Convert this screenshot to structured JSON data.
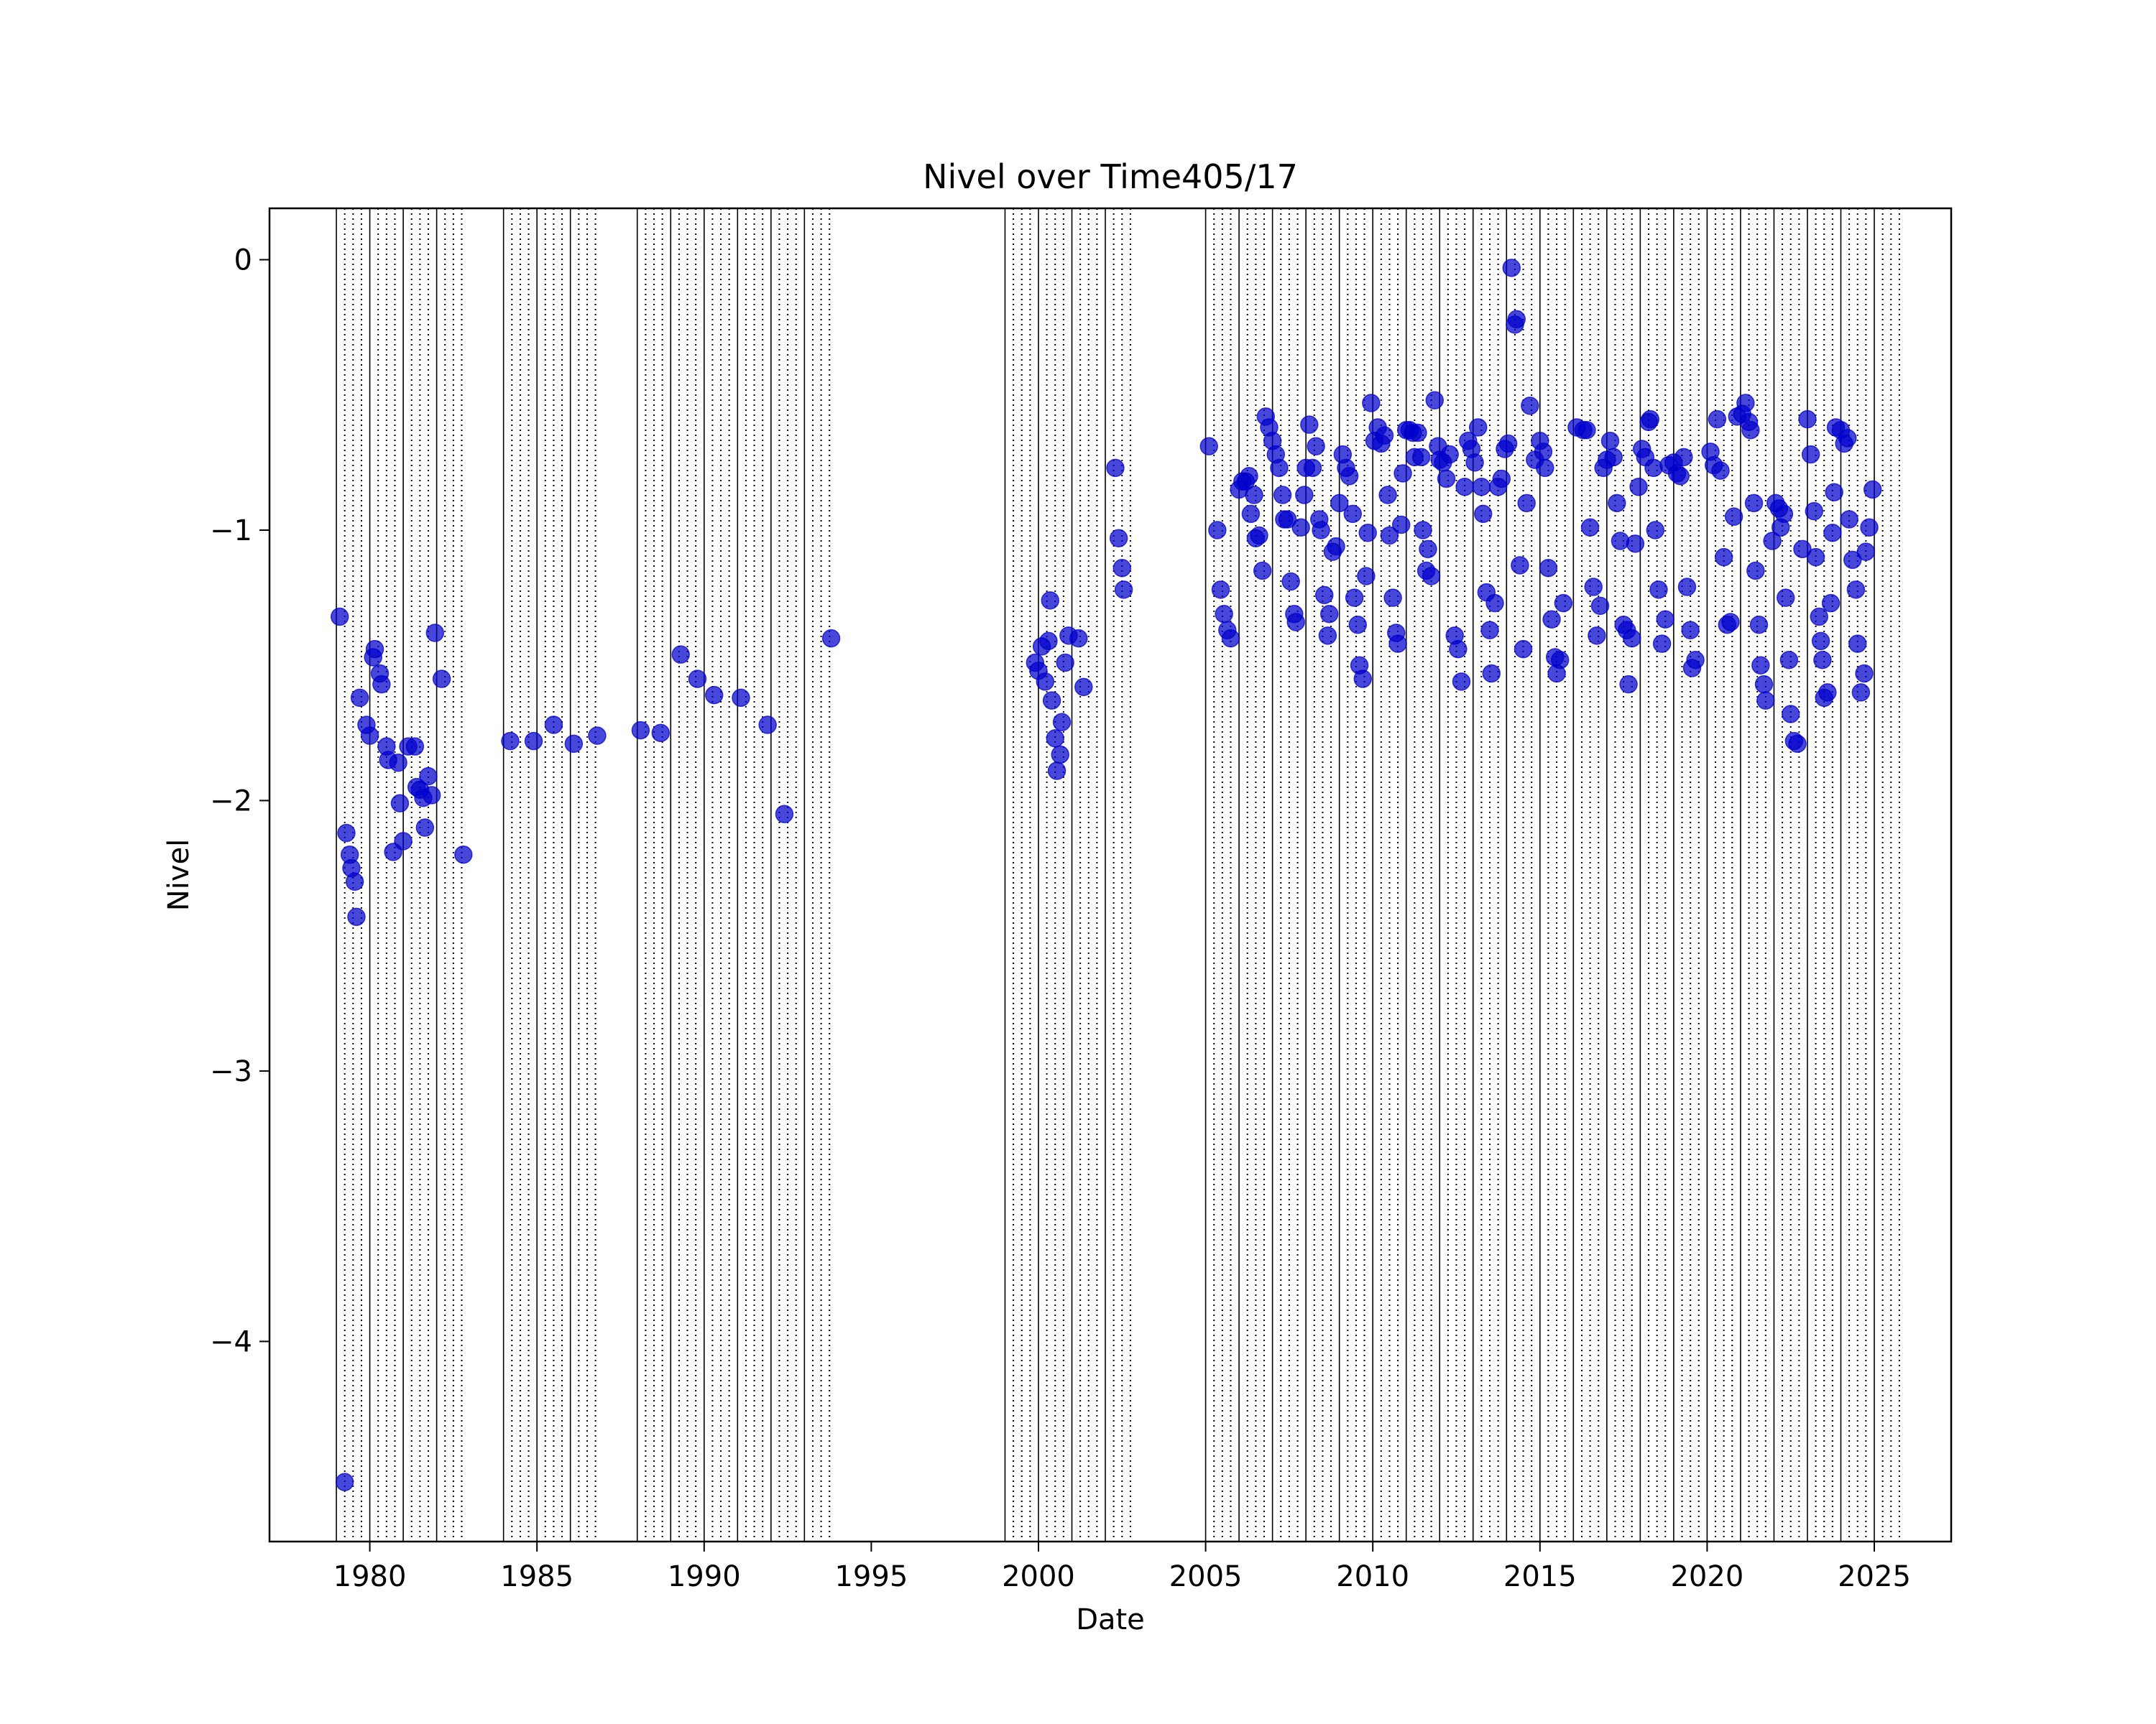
{
  "chart_data": {
    "type": "scatter",
    "title": "Nivel over Time405/17",
    "xlabel": "Date",
    "ylabel": "Nivel",
    "xlim": [
      1977.0,
      2027.3
    ],
    "ylim": [
      -4.74,
      0.19
    ],
    "x_ticks": [
      1980,
      1985,
      1990,
      1995,
      2000,
      2005,
      2010,
      2015,
      2020,
      2025
    ],
    "x_tick_labels": [
      "1980",
      "1985",
      "1990",
      "1995",
      "2000",
      "2005",
      "2010",
      "2015",
      "2020",
      "2025"
    ],
    "y_ticks": [
      0,
      -1,
      -2,
      -3,
      -4
    ],
    "y_tick_labels": [
      "0",
      "−1",
      "−2",
      "−3",
      "−4"
    ],
    "grid": false,
    "marker_color": "#0000cc",
    "vline_year_starts": [
      1979,
      1980,
      1981,
      1982,
      1984,
      1985,
      1986,
      1988,
      1989,
      1990,
      1991,
      1992,
      1993,
      1999,
      2000,
      2001,
      2002,
      2005,
      2006,
      2007,
      2008,
      2009,
      2010,
      2011,
      2012,
      2013,
      2014,
      2015,
      2016,
      2017,
      2018,
      2019,
      2020,
      2021,
      2022,
      2023,
      2024,
      2025
    ],
    "vline_intermediate": [
      1979.25,
      1979.5,
      1979.75,
      1980.25,
      1980.5,
      1980.75,
      1981.25,
      1981.5,
      1981.75,
      1982.25,
      1982.5,
      1982.75,
      1984.25,
      1984.5,
      1984.75,
      1985.25,
      1985.5,
      1985.75,
      1986.25,
      1986.5,
      1986.75,
      1988.25,
      1988.5,
      1988.75,
      1989.25,
      1989.5,
      1989.75,
      1990.25,
      1990.5,
      1990.75,
      1991.25,
      1991.5,
      1991.75,
      1992.25,
      1992.5,
      1992.75,
      1993.25,
      1993.5,
      1993.75,
      1999.25,
      1999.5,
      1999.75,
      2000.25,
      2000.5,
      2000.75,
      2001.25,
      2001.5,
      2001.75,
      2002.25,
      2002.5,
      2002.75,
      2005.25,
      2005.5,
      2005.75,
      2006.25,
      2006.5,
      2006.75,
      2007.25,
      2007.5,
      2007.75,
      2008.25,
      2008.5,
      2008.75,
      2009.25,
      2009.5,
      2009.75,
      2010.25,
      2010.5,
      2010.75,
      2011.25,
      2011.5,
      2011.75,
      2012.25,
      2012.5,
      2012.75,
      2013.25,
      2013.5,
      2013.75,
      2014.25,
      2014.5,
      2014.75,
      2015.25,
      2015.5,
      2015.75,
      2016.25,
      2016.5,
      2016.75,
      2017.25,
      2017.5,
      2017.75,
      2018.25,
      2018.5,
      2018.75,
      2019.25,
      2019.5,
      2019.75,
      2020.25,
      2020.5,
      2020.75,
      2021.25,
      2021.5,
      2021.75,
      2022.25,
      2022.5,
      2022.75,
      2023.25,
      2023.5,
      2023.75,
      2024.25,
      2024.5,
      2024.75,
      2025.25,
      2025.5,
      2025.75
    ],
    "points": [
      [
        1979.1,
        -1.32
      ],
      [
        1979.25,
        -4.52
      ],
      [
        1979.3,
        -2.12
      ],
      [
        1979.4,
        -2.2
      ],
      [
        1979.45,
        -2.25
      ],
      [
        1979.55,
        -2.3
      ],
      [
        1979.6,
        -2.43
      ],
      [
        1979.7,
        -1.62
      ],
      [
        1979.9,
        -1.72
      ],
      [
        1980.0,
        -1.76
      ],
      [
        1980.1,
        -1.47
      ],
      [
        1980.15,
        -1.44
      ],
      [
        1980.3,
        -1.53
      ],
      [
        1980.35,
        -1.57
      ],
      [
        1980.5,
        -1.8
      ],
      [
        1980.55,
        -1.85
      ],
      [
        1980.7,
        -2.19
      ],
      [
        1980.85,
        -1.86
      ],
      [
        1980.9,
        -2.01
      ],
      [
        1981.0,
        -2.15
      ],
      [
        1981.15,
        -1.8
      ],
      [
        1981.35,
        -1.8
      ],
      [
        1981.4,
        -1.95
      ],
      [
        1981.5,
        -1.96
      ],
      [
        1981.6,
        -1.99
      ],
      [
        1981.65,
        -2.1
      ],
      [
        1981.75,
        -1.91
      ],
      [
        1981.85,
        -1.98
      ],
      [
        1981.95,
        -1.38
      ],
      [
        1982.15,
        -1.55
      ],
      [
        1982.8,
        -2.2
      ],
      [
        1984.2,
        -1.78
      ],
      [
        1984.9,
        -1.78
      ],
      [
        1985.5,
        -1.72
      ],
      [
        1986.1,
        -1.79
      ],
      [
        1986.8,
        -1.76
      ],
      [
        1988.1,
        -1.74
      ],
      [
        1988.7,
        -1.75
      ],
      [
        1989.3,
        -1.46
      ],
      [
        1989.8,
        -1.55
      ],
      [
        1990.3,
        -1.61
      ],
      [
        1991.1,
        -1.62
      ],
      [
        1991.9,
        -1.72
      ],
      [
        1992.4,
        -2.05
      ],
      [
        1993.8,
        -1.4
      ],
      [
        1999.9,
        -1.49
      ],
      [
        2000.0,
        -1.52
      ],
      [
        2000.1,
        -1.43
      ],
      [
        2000.2,
        -1.56
      ],
      [
        2000.3,
        -1.41
      ],
      [
        2000.35,
        -1.26
      ],
      [
        2000.4,
        -1.63
      ],
      [
        2000.5,
        -1.77
      ],
      [
        2000.55,
        -1.89
      ],
      [
        2000.65,
        -1.83
      ],
      [
        2000.7,
        -1.71
      ],
      [
        2000.8,
        -1.49
      ],
      [
        2000.9,
        -1.39
      ],
      [
        2001.2,
        -1.4
      ],
      [
        2001.35,
        -1.58
      ],
      [
        2002.3,
        -0.77
      ],
      [
        2002.4,
        -1.03
      ],
      [
        2002.5,
        -1.14
      ],
      [
        2002.55,
        -1.22
      ],
      [
        2005.1,
        -0.69
      ],
      [
        2005.35,
        -1.0
      ],
      [
        2005.45,
        -1.22
      ],
      [
        2005.55,
        -1.31
      ],
      [
        2005.65,
        -1.37
      ],
      [
        2005.75,
        -1.4
      ],
      [
        2006.0,
        -0.85
      ],
      [
        2006.1,
        -0.82
      ],
      [
        2006.2,
        -0.82
      ],
      [
        2006.3,
        -0.8
      ],
      [
        2006.35,
        -0.94
      ],
      [
        2006.45,
        -0.87
      ],
      [
        2006.5,
        -1.03
      ],
      [
        2006.6,
        -1.02
      ],
      [
        2006.7,
        -1.15
      ],
      [
        2006.8,
        -0.58
      ],
      [
        2006.9,
        -0.62
      ],
      [
        2007.0,
        -0.67
      ],
      [
        2007.1,
        -0.72
      ],
      [
        2007.2,
        -0.77
      ],
      [
        2007.3,
        -0.87
      ],
      [
        2007.35,
        -0.96
      ],
      [
        2007.45,
        -0.96
      ],
      [
        2007.55,
        -1.19
      ],
      [
        2007.65,
        -1.31
      ],
      [
        2007.7,
        -1.34
      ],
      [
        2007.85,
        -0.99
      ],
      [
        2007.95,
        -0.87
      ],
      [
        2008.0,
        -0.77
      ],
      [
        2008.1,
        -0.61
      ],
      [
        2008.2,
        -0.77
      ],
      [
        2008.3,
        -0.69
      ],
      [
        2008.4,
        -0.96
      ],
      [
        2008.45,
        -1.0
      ],
      [
        2008.55,
        -1.24
      ],
      [
        2008.65,
        -1.39
      ],
      [
        2008.7,
        -1.31
      ],
      [
        2008.8,
        -1.08
      ],
      [
        2008.9,
        -1.06
      ],
      [
        2009.0,
        -0.9
      ],
      [
        2009.1,
        -0.72
      ],
      [
        2009.2,
        -0.77
      ],
      [
        2009.3,
        -0.8
      ],
      [
        2009.4,
        -0.94
      ],
      [
        2009.45,
        -1.25
      ],
      [
        2009.55,
        -1.35
      ],
      [
        2009.6,
        -1.5
      ],
      [
        2009.7,
        -1.55
      ],
      [
        2009.8,
        -1.17
      ],
      [
        2009.85,
        -1.01
      ],
      [
        2009.95,
        -0.53
      ],
      [
        2010.05,
        -0.67
      ],
      [
        2010.15,
        -0.62
      ],
      [
        2010.25,
        -0.68
      ],
      [
        2010.35,
        -0.65
      ],
      [
        2010.45,
        -0.87
      ],
      [
        2010.5,
        -1.02
      ],
      [
        2010.6,
        -1.25
      ],
      [
        2010.7,
        -1.38
      ],
      [
        2010.75,
        -1.42
      ],
      [
        2010.85,
        -0.98
      ],
      [
        2010.9,
        -0.79
      ],
      [
        2011.0,
        -0.63
      ],
      [
        2011.1,
        -0.63
      ],
      [
        2011.2,
        -0.64
      ],
      [
        2011.25,
        -0.73
      ],
      [
        2011.35,
        -0.64
      ],
      [
        2011.45,
        -0.73
      ],
      [
        2011.5,
        -1.0
      ],
      [
        2011.6,
        -1.15
      ],
      [
        2011.65,
        -1.07
      ],
      [
        2011.75,
        -1.17
      ],
      [
        2011.85,
        -0.52
      ],
      [
        2011.95,
        -0.69
      ],
      [
        2012.0,
        -0.74
      ],
      [
        2012.1,
        -0.75
      ],
      [
        2012.2,
        -0.81
      ],
      [
        2012.3,
        -0.72
      ],
      [
        2012.45,
        -1.39
      ],
      [
        2012.55,
        -1.44
      ],
      [
        2012.65,
        -1.56
      ],
      [
        2012.75,
        -0.84
      ],
      [
        2012.85,
        -0.67
      ],
      [
        2012.95,
        -0.7
      ],
      [
        2013.05,
        -0.75
      ],
      [
        2013.15,
        -0.62
      ],
      [
        2013.25,
        -0.84
      ],
      [
        2013.3,
        -0.94
      ],
      [
        2013.4,
        -1.23
      ],
      [
        2013.5,
        -1.37
      ],
      [
        2013.55,
        -1.53
      ],
      [
        2013.65,
        -1.27
      ],
      [
        2013.75,
        -0.84
      ],
      [
        2013.85,
        -0.81
      ],
      [
        2013.95,
        -0.7
      ],
      [
        2014.05,
        -0.68
      ],
      [
        2014.15,
        -0.03
      ],
      [
        2014.25,
        -0.24
      ],
      [
        2014.3,
        -0.22
      ],
      [
        2014.4,
        -1.13
      ],
      [
        2014.5,
        -1.44
      ],
      [
        2014.6,
        -0.9
      ],
      [
        2014.7,
        -0.54
      ],
      [
        2014.85,
        -0.74
      ],
      [
        2015.0,
        -0.67
      ],
      [
        2015.1,
        -0.71
      ],
      [
        2015.15,
        -0.77
      ],
      [
        2015.25,
        -1.14
      ],
      [
        2015.35,
        -1.33
      ],
      [
        2015.45,
        -1.47
      ],
      [
        2015.5,
        -1.53
      ],
      [
        2015.6,
        -1.48
      ],
      [
        2015.7,
        -1.27
      ],
      [
        2016.1,
        -0.62
      ],
      [
        2016.3,
        -0.63
      ],
      [
        2016.4,
        -0.63
      ],
      [
        2016.5,
        -0.99
      ],
      [
        2016.6,
        -1.21
      ],
      [
        2016.7,
        -1.39
      ],
      [
        2016.8,
        -1.28
      ],
      [
        2016.9,
        -0.77
      ],
      [
        2017.0,
        -0.74
      ],
      [
        2017.1,
        -0.67
      ],
      [
        2017.2,
        -0.73
      ],
      [
        2017.3,
        -0.9
      ],
      [
        2017.4,
        -1.04
      ],
      [
        2017.5,
        -1.35
      ],
      [
        2017.6,
        -1.37
      ],
      [
        2017.65,
        -1.57
      ],
      [
        2017.75,
        -1.4
      ],
      [
        2017.85,
        -1.05
      ],
      [
        2017.95,
        -0.84
      ],
      [
        2018.05,
        -0.7
      ],
      [
        2018.15,
        -0.73
      ],
      [
        2018.25,
        -0.6
      ],
      [
        2018.3,
        -0.59
      ],
      [
        2018.4,
        -0.77
      ],
      [
        2018.45,
        -1.0
      ],
      [
        2018.55,
        -1.22
      ],
      [
        2018.65,
        -1.42
      ],
      [
        2018.75,
        -1.33
      ],
      [
        2018.85,
        -0.76
      ],
      [
        2019.0,
        -0.75
      ],
      [
        2019.1,
        -0.79
      ],
      [
        2019.2,
        -0.8
      ],
      [
        2019.3,
        -0.73
      ],
      [
        2019.4,
        -1.21
      ],
      [
        2019.5,
        -1.37
      ],
      [
        2019.55,
        -1.51
      ],
      [
        2019.65,
        -1.48
      ],
      [
        2020.1,
        -0.71
      ],
      [
        2020.2,
        -0.76
      ],
      [
        2020.3,
        -0.59
      ],
      [
        2020.4,
        -0.78
      ],
      [
        2020.5,
        -1.1
      ],
      [
        2020.6,
        -1.35
      ],
      [
        2020.7,
        -1.34
      ],
      [
        2020.8,
        -0.95
      ],
      [
        2020.9,
        -0.58
      ],
      [
        2021.05,
        -0.57
      ],
      [
        2021.15,
        -0.53
      ],
      [
        2021.25,
        -0.6
      ],
      [
        2021.3,
        -0.63
      ],
      [
        2021.4,
        -0.9
      ],
      [
        2021.45,
        -1.15
      ],
      [
        2021.55,
        -1.35
      ],
      [
        2021.6,
        -1.5
      ],
      [
        2021.7,
        -1.57
      ],
      [
        2021.75,
        -1.63
      ],
      [
        2021.95,
        -1.04
      ],
      [
        2022.05,
        -0.9
      ],
      [
        2022.15,
        -0.92
      ],
      [
        2022.2,
        -0.99
      ],
      [
        2022.3,
        -0.94
      ],
      [
        2022.35,
        -1.25
      ],
      [
        2022.45,
        -1.48
      ],
      [
        2022.5,
        -1.68
      ],
      [
        2022.6,
        -1.78
      ],
      [
        2022.7,
        -1.79
      ],
      [
        2022.85,
        -1.07
      ],
      [
        2023.0,
        -0.59
      ],
      [
        2023.1,
        -0.72
      ],
      [
        2023.2,
        -0.93
      ],
      [
        2023.25,
        -1.1
      ],
      [
        2023.35,
        -1.32
      ],
      [
        2023.4,
        -1.41
      ],
      [
        2023.45,
        -1.48
      ],
      [
        2023.5,
        -1.62
      ],
      [
        2023.6,
        -1.6
      ],
      [
        2023.7,
        -1.27
      ],
      [
        2023.75,
        -1.01
      ],
      [
        2023.8,
        -0.86
      ],
      [
        2023.85,
        -0.62
      ],
      [
        2024.0,
        -0.63
      ],
      [
        2024.1,
        -0.68
      ],
      [
        2024.2,
        -0.66
      ],
      [
        2024.25,
        -0.96
      ],
      [
        2024.35,
        -1.11
      ],
      [
        2024.45,
        -1.22
      ],
      [
        2024.5,
        -1.42
      ],
      [
        2024.6,
        -1.6
      ],
      [
        2024.7,
        -1.53
      ],
      [
        2024.75,
        -1.08
      ],
      [
        2024.85,
        -0.99
      ],
      [
        2024.95,
        -0.85
      ]
    ]
  }
}
